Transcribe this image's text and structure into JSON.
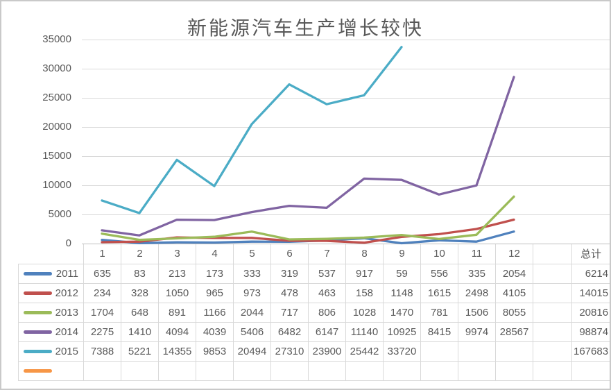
{
  "chart_data": {
    "type": "line",
    "title": "新能源汽车生产增长较快",
    "categories": [
      "1",
      "2",
      "3",
      "4",
      "5",
      "6",
      "7",
      "8",
      "9",
      "10",
      "11",
      "12"
    ],
    "extra_column_label": "",
    "total_label": "总计",
    "ylabel": "",
    "xlabel": "",
    "ylim": [
      0,
      35000
    ],
    "ytick_step": 5000,
    "ytick_labels": [
      "0",
      "5000",
      "10000",
      "15000",
      "20000",
      "25000",
      "30000",
      "35000"
    ],
    "grid": true,
    "legend_position": "table-left-column",
    "colors": {
      "grid": "#d9d9d9",
      "axis": "#bfbfbf",
      "text": "#595959",
      "table_border": "#d9d9d9"
    },
    "series": [
      {
        "name": "2011",
        "color": "#4F81BD",
        "values": [
          635,
          83,
          213,
          173,
          333,
          319,
          537,
          917,
          59,
          556,
          335,
          2054
        ],
        "total": 6214
      },
      {
        "name": "2012",
        "color": "#C0504D",
        "values": [
          234,
          328,
          1050,
          965,
          973,
          478,
          463,
          158,
          1148,
          1615,
          2498,
          4105
        ],
        "total": 14015
      },
      {
        "name": "2013",
        "color": "#9BBB59",
        "values": [
          1704,
          648,
          891,
          1166,
          2044,
          717,
          806,
          1028,
          1470,
          781,
          1506,
          8055
        ],
        "total": 20816
      },
      {
        "name": "2014",
        "color": "#8064A2",
        "values": [
          2275,
          1410,
          4094,
          4039,
          5406,
          6482,
          6147,
          11140,
          10925,
          8415,
          9974,
          28567
        ],
        "total": 98874
      },
      {
        "name": "2015",
        "color": "#4BACC6",
        "values": [
          7388,
          5221,
          14355,
          9853,
          20494,
          27310,
          23900,
          25442,
          33720,
          null,
          null,
          null
        ],
        "total": 167683
      },
      {
        "name": "",
        "color": "#F79646",
        "values": [
          null,
          null,
          null,
          null,
          null,
          null,
          null,
          null,
          null,
          null,
          null,
          null
        ],
        "total": null
      }
    ]
  }
}
